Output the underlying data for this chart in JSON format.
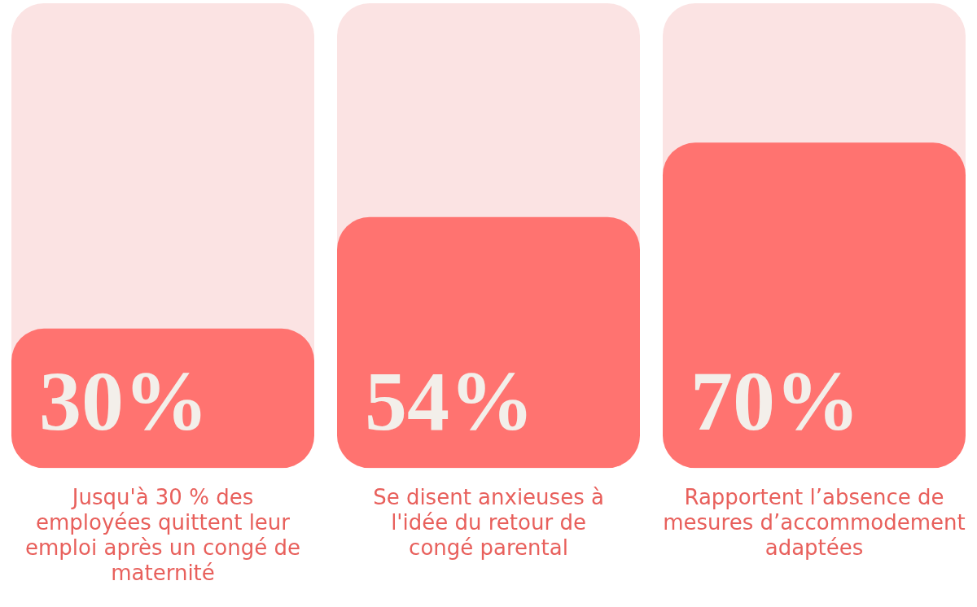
{
  "chart_data": {
    "type": "bar",
    "categories": [
      "Jusqu'à 30 % des employées quittent leur emploi après un congé de maternité",
      "Se disent anxieuses à l'idée du retour de congé parental",
      "Rapportent l’absence de mesures d’accommodement adaptées"
    ],
    "values": [
      30,
      54,
      70
    ],
    "value_labels": [
      "30%",
      "54%",
      "70%"
    ],
    "color": "#ff7370",
    "ylim": [
      0,
      100
    ],
    "tick_labels": "x"
  }
}
